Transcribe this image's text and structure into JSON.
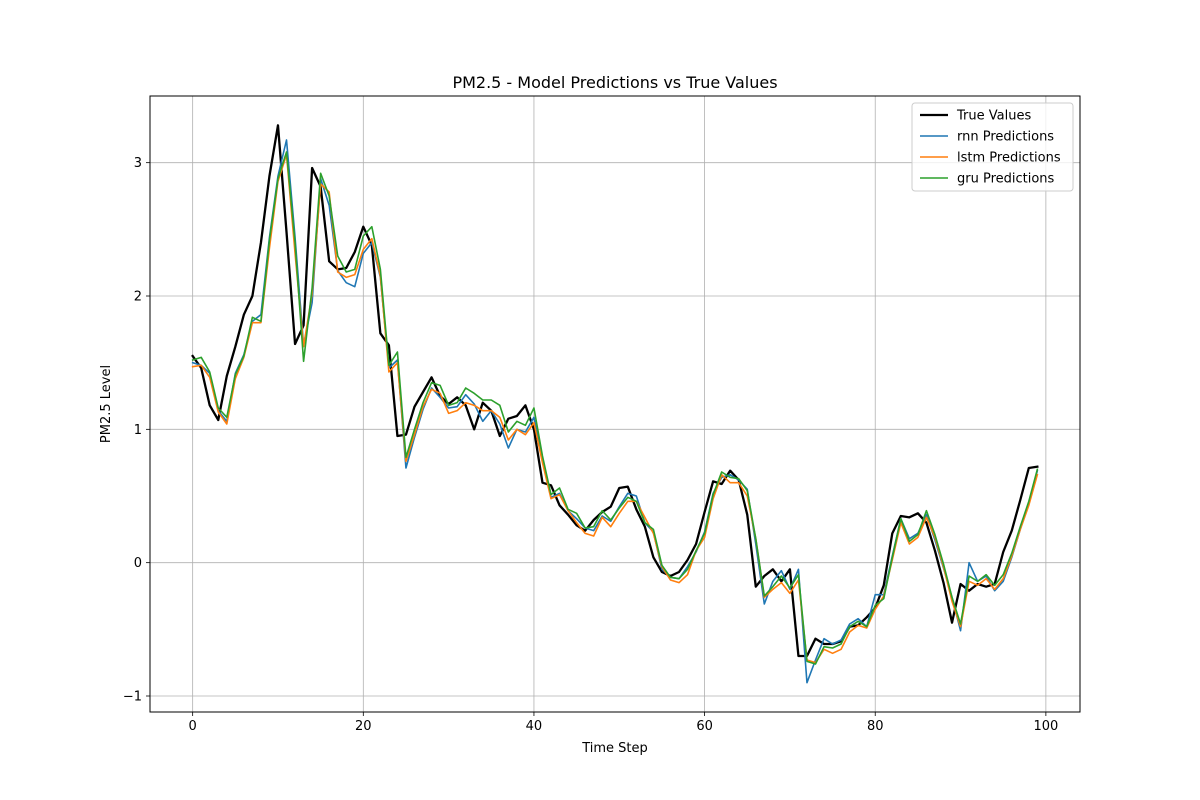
{
  "chart_data": {
    "type": "line",
    "title": "PM2.5 - Model Predictions vs True Values",
    "xlabel": "Time Step",
    "ylabel": "PM2.5 Level",
    "xlim": [
      -5,
      104
    ],
    "ylim": [
      -1.12,
      3.5
    ],
    "xticks": [
      0,
      20,
      40,
      60,
      80,
      100
    ],
    "xtick_labels": [
      "0",
      "20",
      "40",
      "60",
      "80",
      "100"
    ],
    "yticks": [
      -1,
      0,
      1,
      2,
      3
    ],
    "ytick_labels": [
      "−1",
      "0",
      "1",
      "2",
      "3"
    ],
    "grid": true,
    "legend_position": "top-right",
    "x_start": 0,
    "series": [
      {
        "name": "True Values",
        "color": "#000000",
        "values": [
          1.55,
          1.46,
          1.18,
          1.07,
          1.4,
          1.62,
          1.86,
          2.0,
          2.4,
          2.9,
          3.28,
          2.48,
          1.64,
          1.78,
          2.96,
          2.82,
          2.26,
          2.2,
          2.21,
          2.33,
          2.52,
          2.38,
          1.72,
          1.63,
          0.95,
          0.96,
          1.17,
          1.28,
          1.39,
          1.25,
          1.19,
          1.24,
          1.18,
          1.0,
          1.2,
          1.14,
          0.95,
          1.08,
          1.1,
          1.18,
          1.0,
          0.6,
          0.58,
          0.43,
          0.36,
          0.28,
          0.24,
          0.32,
          0.38,
          0.42,
          0.56,
          0.57,
          0.4,
          0.27,
          0.04,
          -0.07,
          -0.1,
          -0.07,
          0.02,
          0.14,
          0.38,
          0.61,
          0.59,
          0.69,
          0.62,
          0.36,
          -0.18,
          -0.1,
          -0.05,
          -0.14,
          -0.05,
          -0.7,
          -0.7,
          -0.57,
          -0.61,
          -0.61,
          -0.59,
          -0.48,
          -0.47,
          -0.41,
          -0.34,
          -0.17,
          0.22,
          0.35,
          0.34,
          0.37,
          0.3,
          0.09,
          -0.15,
          -0.45,
          -0.16,
          -0.21,
          -0.16,
          -0.18,
          -0.16,
          0.08,
          0.24,
          0.47,
          0.71,
          0.72
        ]
      },
      {
        "name": "rnn Predictions",
        "color": "#1f77b4",
        "values": [
          1.5,
          1.48,
          1.42,
          1.14,
          1.06,
          1.42,
          1.56,
          1.81,
          1.86,
          2.44,
          2.9,
          3.17,
          2.44,
          1.63,
          1.95,
          2.88,
          2.68,
          2.19,
          2.1,
          2.07,
          2.32,
          2.4,
          2.14,
          1.46,
          1.52,
          0.71,
          0.94,
          1.15,
          1.31,
          1.24,
          1.16,
          1.17,
          1.26,
          1.19,
          1.06,
          1.14,
          1.04,
          0.86,
          1.0,
          0.98,
          1.09,
          0.78,
          0.49,
          0.52,
          0.39,
          0.33,
          0.26,
          0.24,
          0.35,
          0.31,
          0.42,
          0.52,
          0.5,
          0.3,
          0.23,
          -0.05,
          -0.11,
          -0.12,
          -0.03,
          0.08,
          0.23,
          0.52,
          0.64,
          0.66,
          0.62,
          0.55,
          0.14,
          -0.31,
          -0.14,
          -0.06,
          -0.2,
          -0.05,
          -0.9,
          -0.73,
          -0.57,
          -0.61,
          -0.58,
          -0.46,
          -0.42,
          -0.48,
          -0.24,
          -0.24,
          0.05,
          0.33,
          0.18,
          0.22,
          0.36,
          0.17,
          -0.04,
          -0.26,
          -0.51,
          0.0,
          -0.14,
          -0.1,
          -0.21,
          -0.14,
          0.04,
          0.25,
          0.44,
          0.69
        ]
      },
      {
        "name": "lstm Predictions",
        "color": "#ff7f0e",
        "values": [
          1.47,
          1.48,
          1.39,
          1.13,
          1.04,
          1.38,
          1.54,
          1.8,
          1.8,
          2.36,
          2.86,
          3.06,
          2.32,
          1.62,
          2.02,
          2.84,
          2.78,
          2.18,
          2.14,
          2.16,
          2.35,
          2.43,
          2.15,
          1.43,
          1.5,
          0.76,
          0.96,
          1.17,
          1.3,
          1.27,
          1.12,
          1.14,
          1.2,
          1.18,
          1.14,
          1.14,
          1.09,
          0.92,
          1.0,
          0.96,
          1.05,
          0.75,
          0.48,
          0.51,
          0.39,
          0.3,
          0.22,
          0.2,
          0.34,
          0.27,
          0.37,
          0.46,
          0.46,
          0.34,
          0.22,
          -0.03,
          -0.13,
          -0.15,
          -0.09,
          0.09,
          0.19,
          0.48,
          0.66,
          0.6,
          0.6,
          0.5,
          0.18,
          -0.26,
          -0.2,
          -0.15,
          -0.23,
          -0.13,
          -0.73,
          -0.75,
          -0.65,
          -0.68,
          -0.65,
          -0.52,
          -0.47,
          -0.49,
          -0.35,
          -0.25,
          0.02,
          0.3,
          0.14,
          0.19,
          0.34,
          0.19,
          -0.03,
          -0.29,
          -0.48,
          -0.14,
          -0.17,
          -0.12,
          -0.2,
          -0.12,
          0.05,
          0.25,
          0.43,
          0.66
        ]
      },
      {
        "name": "gru Predictions",
        "color": "#2ca02c",
        "values": [
          1.52,
          1.54,
          1.43,
          1.16,
          1.09,
          1.41,
          1.55,
          1.84,
          1.81,
          2.42,
          2.88,
          3.08,
          2.4,
          1.51,
          2.06,
          2.92,
          2.75,
          2.3,
          2.18,
          2.2,
          2.45,
          2.52,
          2.2,
          1.48,
          1.58,
          0.79,
          1.0,
          1.2,
          1.35,
          1.33,
          1.18,
          1.2,
          1.31,
          1.27,
          1.22,
          1.22,
          1.18,
          0.98,
          1.06,
          1.03,
          1.16,
          0.8,
          0.51,
          0.56,
          0.4,
          0.37,
          0.26,
          0.27,
          0.39,
          0.32,
          0.41,
          0.49,
          0.46,
          0.3,
          0.25,
          -0.02,
          -0.11,
          -0.12,
          -0.05,
          0.09,
          0.22,
          0.51,
          0.68,
          0.64,
          0.63,
          0.54,
          0.18,
          -0.25,
          -0.18,
          -0.1,
          -0.19,
          -0.09,
          -0.74,
          -0.76,
          -0.63,
          -0.64,
          -0.61,
          -0.48,
          -0.44,
          -0.48,
          -0.32,
          -0.27,
          0.04,
          0.33,
          0.16,
          0.21,
          0.39,
          0.21,
          -0.01,
          -0.26,
          -0.46,
          -0.1,
          -0.14,
          -0.09,
          -0.17,
          -0.09,
          0.07,
          0.27,
          0.46,
          0.7
        ]
      }
    ]
  }
}
